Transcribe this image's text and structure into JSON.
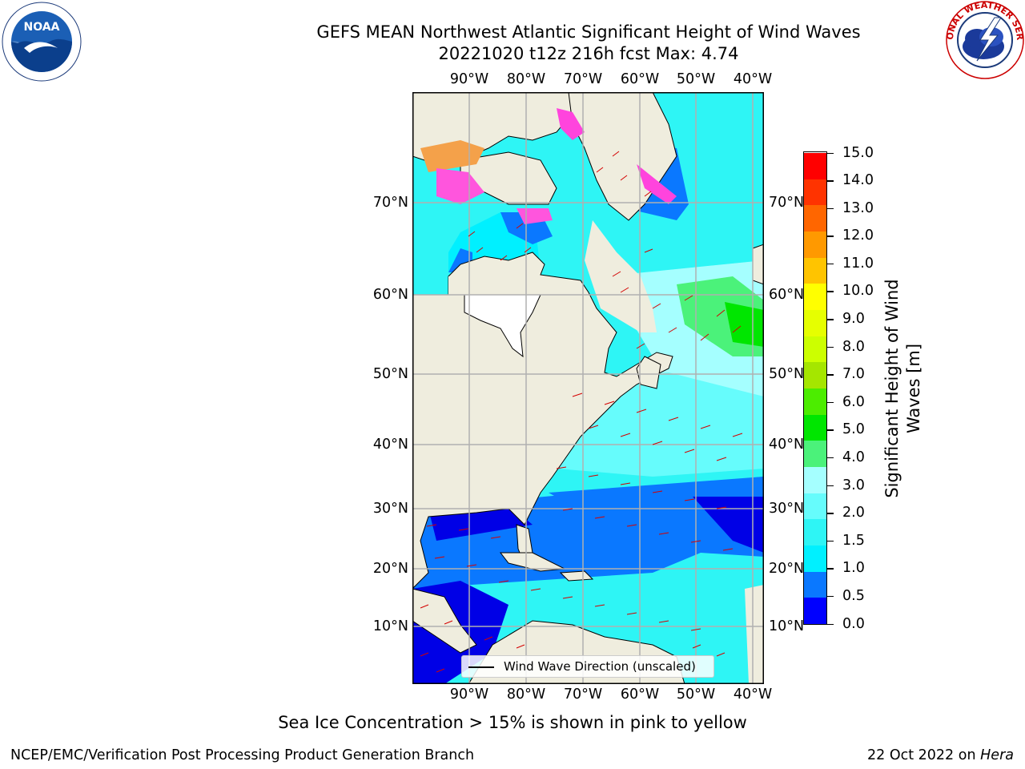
{
  "title_line1": "GEFS MEAN Northwest Atlantic Significant Height of Wind Waves",
  "title_line2": "20221020 t12z 216h fcst   Max: 4.74",
  "logos": {
    "left": {
      "name": "noaa-logo-icon",
      "text": "NOAA",
      "ring_text": "NATIONAL OCEANIC AND ATMOSPHERIC ADMINISTRATION · U.S. DEPARTMENT OF COMMERCE"
    },
    "right": {
      "name": "nws-logo-icon",
      "ring_text": "NATIONAL WEATHER SERVICE"
    }
  },
  "map": {
    "lon_labels": [
      "90°W",
      "80°W",
      "70°W",
      "60°W",
      "50°W",
      "40°W"
    ],
    "lat_labels": [
      "70°N",
      "60°N",
      "50°N",
      "40°N",
      "30°N",
      "20°N",
      "10°N"
    ],
    "land_color": "#efedde",
    "grid": true
  },
  "colorbar": {
    "title_line1": "Significant Height of Wind",
    "title_line2": "Waves [m]",
    "tick_labels": [
      "0.0",
      "0.5",
      "1.0",
      "1.5",
      "2.0",
      "3.0",
      "4.0",
      "5.0",
      "6.0",
      "7.0",
      "8.0",
      "9.0",
      "10.0",
      "11.0",
      "12.0",
      "13.0",
      "14.0",
      "15.0"
    ],
    "colors": [
      "#0000ff",
      "#0a78ff",
      "#00f0ff",
      "#2ef5f5",
      "#66fcfc",
      "#a5ffff",
      "#4bf27a",
      "#00e600",
      "#4ced00",
      "#a5e600",
      "#ccff00",
      "#e6ff00",
      "#ffff00",
      "#ffc400",
      "#ff9900",
      "#ff6600",
      "#ff3300",
      "#ff0000"
    ]
  },
  "legend": {
    "label": "Wind Wave Direction (unscaled)"
  },
  "ice_note": "Sea Ice Concentration > 15% is shown in pink to yellow",
  "footer": {
    "left": "NCEP/EMC/Verification Post Processing Product Generation Branch",
    "right_date": "22 Oct 2022 on",
    "right_host": "Hera"
  }
}
